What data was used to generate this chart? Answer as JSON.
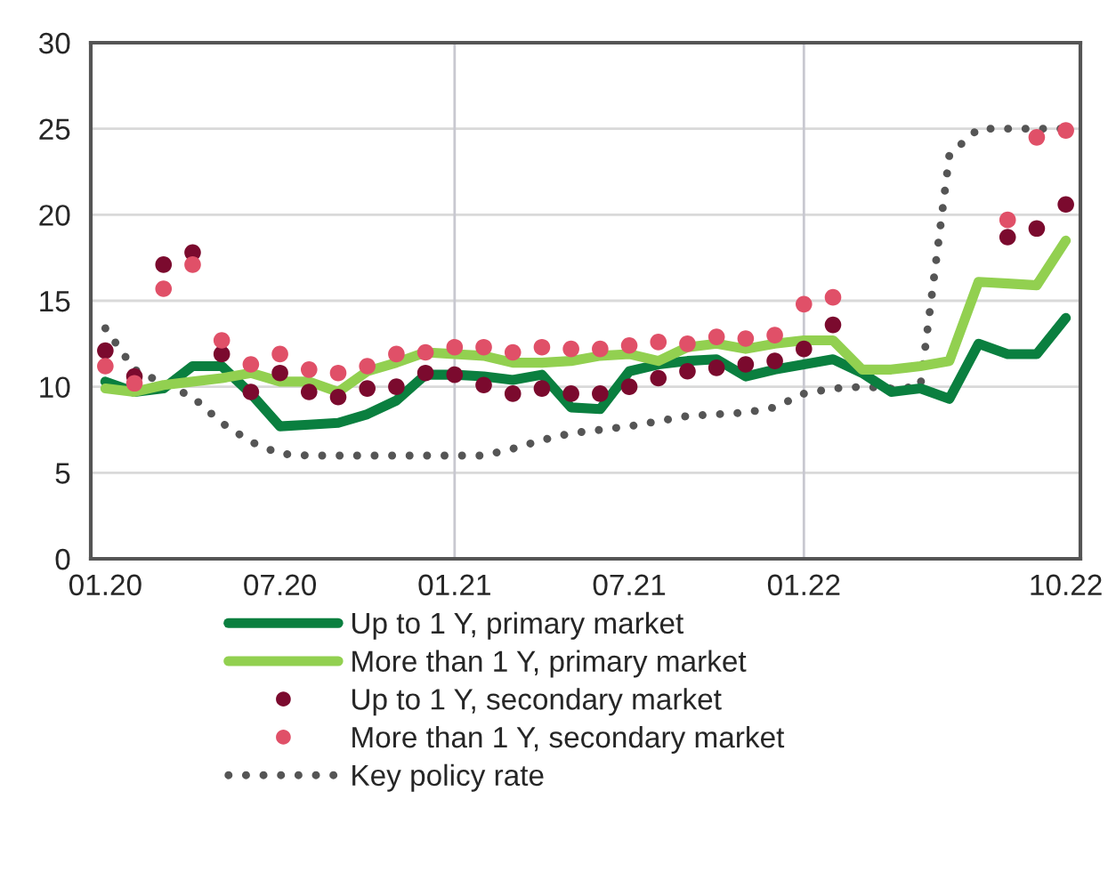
{
  "chart_data": {
    "type": "line",
    "categories": [
      "01.20",
      null,
      null,
      null,
      null,
      null,
      "07.20",
      null,
      null,
      null,
      null,
      null,
      "01.21",
      null,
      null,
      null,
      null,
      null,
      "07.21",
      null,
      null,
      null,
      null,
      null,
      "01.22",
      null,
      null,
      null,
      null,
      null,
      null,
      null,
      null,
      "10.22"
    ],
    "series": [
      {
        "name": "Up to 1 Y, primary market",
        "color": "#0a7f3f",
        "line_style": "solid",
        "values": [
          10.3,
          9.7,
          9.9,
          11.2,
          11.2,
          9.6,
          7.7,
          7.8,
          7.9,
          8.4,
          9.2,
          10.7,
          10.7,
          10.6,
          10.4,
          10.7,
          8.8,
          8.7,
          10.9,
          11.3,
          11.5,
          11.6,
          10.6,
          11.0,
          11.3,
          11.6,
          10.8,
          9.7,
          9.9,
          9.3,
          12.5,
          11.9,
          11.9,
          14.0
        ]
      },
      {
        "name": "More than 1 Y, primary market",
        "color": "#92d050",
        "line_style": "solid",
        "values": [
          9.9,
          9.7,
          10.1,
          10.3,
          10.5,
          10.8,
          10.3,
          10.3,
          9.7,
          10.9,
          11.4,
          12.0,
          11.9,
          11.8,
          11.4,
          11.4,
          11.5,
          11.8,
          11.9,
          11.5,
          12.3,
          12.5,
          12.2,
          12.5,
          12.7,
          12.7,
          11.0,
          11.0,
          11.2,
          11.5,
          16.1,
          16.0,
          15.9,
          18.5
        ]
      },
      {
        "name": "Up to 1 Y, secondary market",
        "type": "scatter",
        "color": "#7b0a2e",
        "marker": "circle",
        "values": [
          12.1,
          10.6,
          17.1,
          17.8,
          11.9,
          9.7,
          10.8,
          9.7,
          9.4,
          9.9,
          10.0,
          10.8,
          10.7,
          10.1,
          9.6,
          9.9,
          9.6,
          9.6,
          10.0,
          10.5,
          10.9,
          11.1,
          11.3,
          11.5,
          12.2,
          13.6,
          null,
          null,
          null,
          null,
          null,
          18.7,
          19.2,
          20.6
        ]
      },
      {
        "name": "More than 1 Y, secondary market",
        "type": "scatter",
        "color": "#e05068",
        "marker": "circle",
        "values": [
          11.2,
          10.2,
          15.7,
          17.1,
          12.7,
          11.3,
          11.9,
          11.0,
          10.8,
          11.2,
          11.9,
          12.0,
          12.3,
          12.3,
          12.0,
          12.3,
          12.2,
          12.2,
          12.4,
          12.6,
          12.5,
          12.9,
          12.8,
          13.0,
          14.8,
          15.2,
          null,
          null,
          null,
          null,
          null,
          19.7,
          24.5,
          24.9
        ]
      },
      {
        "name": "Key policy rate",
        "color": "#555555",
        "line_style": "dotted",
        "values": [
          13.4,
          11.0,
          10.2,
          9.4,
          7.9,
          6.8,
          6.1,
          6.0,
          6.0,
          6.0,
          6.0,
          6.0,
          6.0,
          6.0,
          6.4,
          6.9,
          7.3,
          7.5,
          7.7,
          8.0,
          8.3,
          8.4,
          8.5,
          8.8,
          9.6,
          9.9,
          10.0,
          9.9,
          10.0,
          23.5,
          25.0,
          25.0,
          25.0,
          25.0
        ]
      }
    ],
    "ylim": [
      0,
      30
    ],
    "yticks": [
      0,
      5,
      10,
      15,
      20,
      25,
      30
    ],
    "grid": "y",
    "ref_lines": [
      {
        "axis": "x",
        "value": "01.21",
        "color": "#c8c8d0"
      },
      {
        "axis": "x",
        "value": "01.22",
        "color": "#c8c8d0"
      }
    ],
    "legend": "bottom"
  }
}
